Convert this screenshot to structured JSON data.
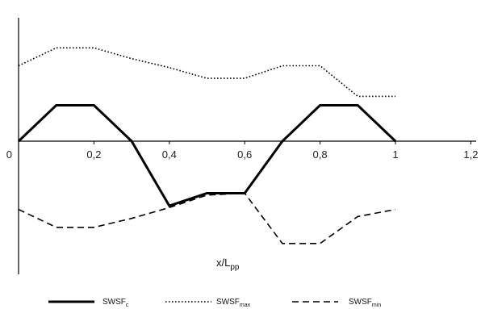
{
  "chart_data": {
    "type": "line",
    "title": "",
    "xlabel": {
      "main": "x/L",
      "sub": "pp"
    },
    "ylabel": "",
    "xlim": [
      0,
      1.2
    ],
    "x_ticks": [
      0,
      0.2,
      0.4,
      0.6,
      0.8,
      1,
      1.2
    ],
    "x_tick_labels": [
      "0",
      "0,2",
      "0,4",
      "0,6",
      "0,8",
      "1",
      "1,2"
    ],
    "y_ticks_shown": false,
    "grid": false,
    "legend_position": "bottom",
    "series": [
      {
        "name": "SWSF",
        "name_main": "SWSF",
        "name_sub": "c",
        "style": "solid",
        "color": "#000000",
        "x": [
          0,
          0.1,
          0.2,
          0.3,
          0.4,
          0.5,
          0.6,
          0.7,
          0.8,
          0.9,
          1.0
        ],
        "y": [
          0,
          1,
          1,
          0,
          -1.8,
          -1.45,
          -1.45,
          0,
          1,
          1,
          0
        ]
      },
      {
        "name": "SWSFmax",
        "name_main": "SWSF",
        "name_sub": "max",
        "style": "dotted",
        "color": "#000000",
        "x": [
          0,
          0.1,
          0.2,
          0.3,
          0.4,
          0.5,
          0.6,
          0.7,
          0.8,
          0.9,
          1.0
        ],
        "y": [
          2.1,
          2.6,
          2.6,
          2.3,
          2.05,
          1.75,
          1.75,
          2.1,
          2.1,
          1.25,
          1.25
        ]
      },
      {
        "name": "SWSFmin",
        "name_main": "SWSF",
        "name_sub": "min",
        "style": "dashed",
        "color": "#000000",
        "x": [
          0,
          0.1,
          0.2,
          0.3,
          0.4,
          0.5,
          0.6,
          0.7,
          0.8,
          0.9,
          1.0
        ],
        "y": [
          -1.9,
          -2.4,
          -2.4,
          -2.15,
          -1.85,
          -1.5,
          -1.45,
          -2.85,
          -2.85,
          -2.1,
          -1.9
        ]
      }
    ]
  }
}
